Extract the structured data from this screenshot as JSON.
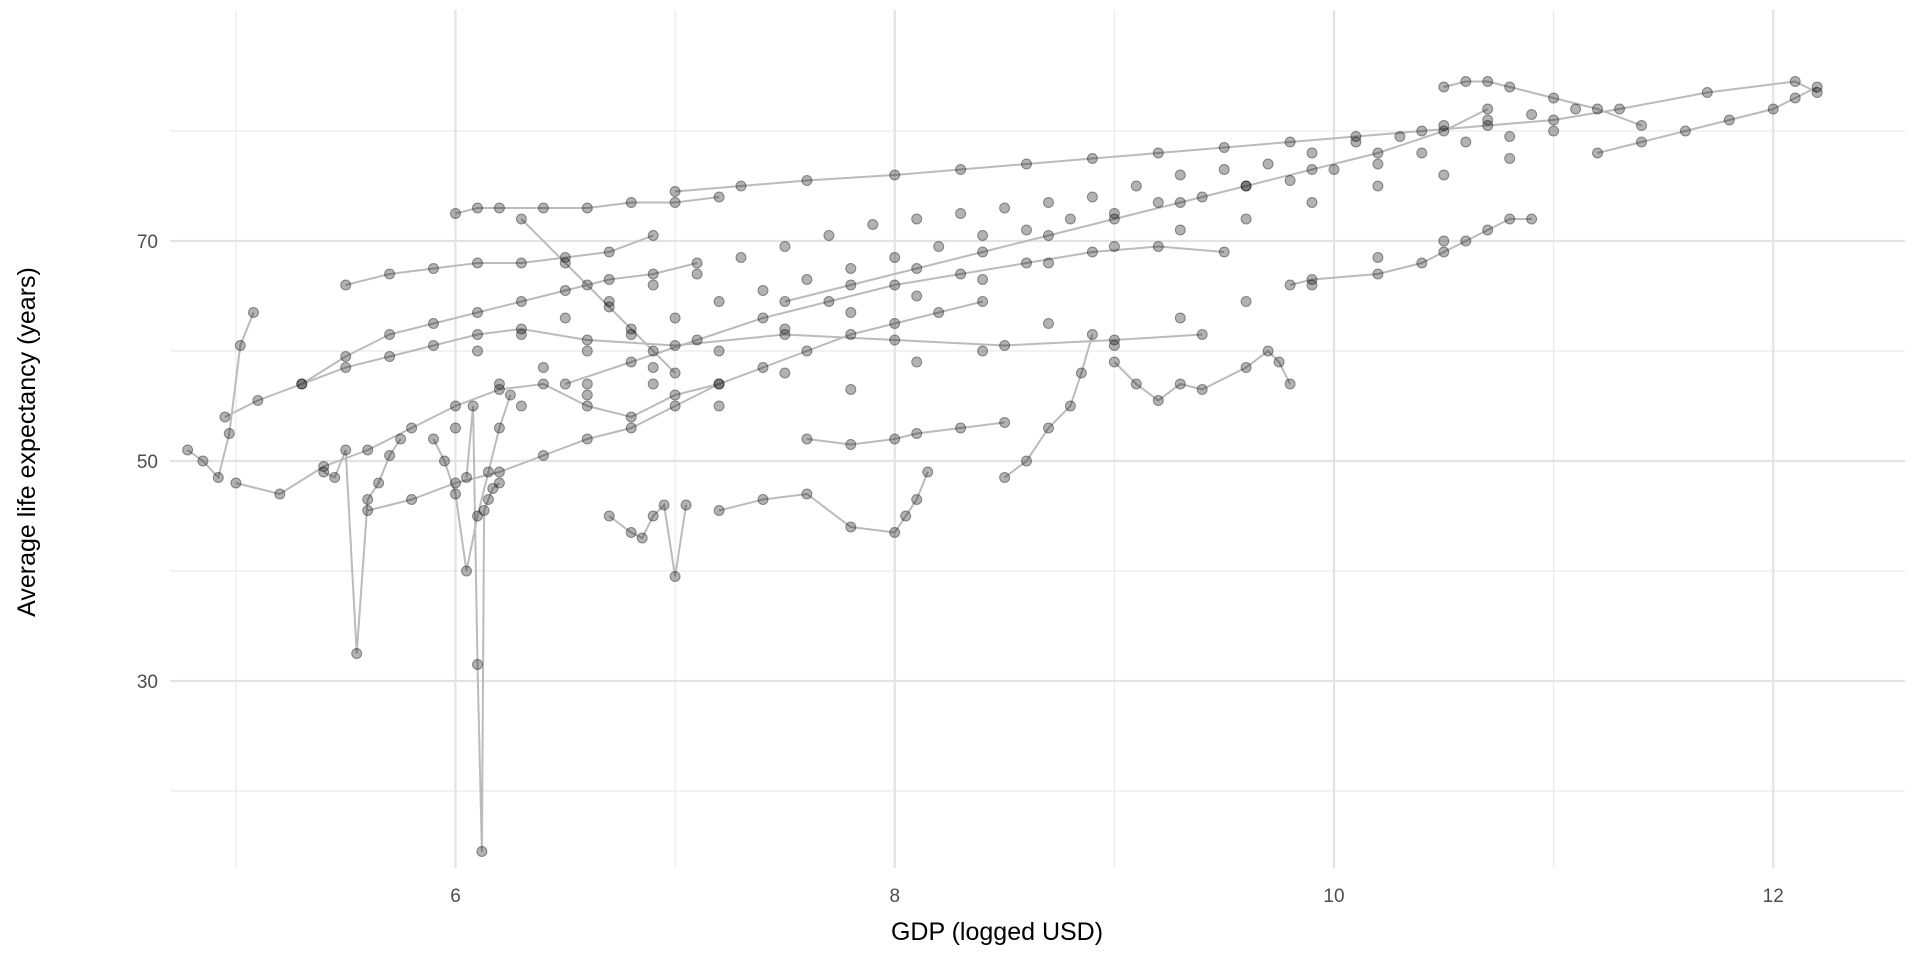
{
  "chart_data": {
    "type": "line",
    "markers": true,
    "title": "",
    "xlabel": "GDP (logged USD)",
    "ylabel": "Average life expectancy (years)",
    "xlim": [
      4.7,
      12.6
    ],
    "ylim": [
      13,
      91
    ],
    "x_ticks": [
      6,
      8,
      10,
      12
    ],
    "y_ticks": [
      30,
      50,
      70
    ],
    "x_minor_gridlines": [
      5,
      7,
      9,
      11
    ],
    "y_minor_gridlines": [
      20,
      40,
      60,
      80
    ],
    "grid": true,
    "legend": "none",
    "mark_color": "#000000",
    "point_opacity": 0.3,
    "line_color": "#bbbbbb",
    "series": [
      {
        "x": [
          4.78,
          4.85,
          4.92,
          4.97,
          5.02,
          5.08
        ],
        "y": [
          51.0,
          50.0,
          48.5,
          52.5,
          60.5,
          63.5
        ]
      },
      {
        "x": [
          4.95,
          5.1,
          5.3,
          5.5,
          5.7,
          5.9,
          6.1,
          6.3,
          6.6,
          7.0,
          7.5,
          8.0,
          8.5,
          9.0,
          9.4
        ],
        "y": [
          54.0,
          55.5,
          57.0,
          58.5,
          59.5,
          60.5,
          61.5,
          62.0,
          61.0,
          60.5,
          61.5,
          61.0,
          60.5,
          61.0,
          61.5
        ]
      },
      {
        "x": [
          5.0,
          5.2,
          5.4,
          5.6,
          5.8,
          6.0,
          6.2,
          6.4,
          6.6,
          6.8,
          7.0,
          7.2
        ],
        "y": [
          48.0,
          47.0,
          49.5,
          51.0,
          53.0,
          55.0,
          56.5,
          57.0,
          55.0,
          54.0,
          56.0,
          57.0
        ]
      },
      {
        "x": [
          5.4,
          5.45,
          5.5,
          5.55,
          5.6,
          5.65,
          5.7,
          5.75
        ],
        "y": [
          49.0,
          48.5,
          51.0,
          32.5,
          46.5,
          48.0,
          50.5,
          52.0
        ]
      },
      {
        "x": [
          5.3,
          5.5,
          5.7,
          5.9,
          6.1,
          6.3,
          6.5,
          6.7,
          6.9,
          7.1
        ],
        "y": [
          57.0,
          59.5,
          61.5,
          62.5,
          63.5,
          64.5,
          65.5,
          66.5,
          67.0,
          68.0
        ]
      },
      {
        "x": [
          5.5,
          5.7,
          5.9,
          6.1,
          6.3,
          6.5,
          6.7,
          6.9
        ],
        "y": [
          66.0,
          67.0,
          67.5,
          68.0,
          68.0,
          68.5,
          69.0,
          70.5
        ]
      },
      {
        "x": [
          5.6,
          5.8,
          6.0,
          6.2,
          6.4,
          6.6,
          6.8,
          7.0,
          7.2,
          7.4,
          7.6,
          7.8,
          8.0,
          8.2,
          8.4
        ],
        "y": [
          45.5,
          46.5,
          48.0,
          49.0,
          50.5,
          52.0,
          53.0,
          55.0,
          57.0,
          58.5,
          60.0,
          61.5,
          62.5,
          63.5,
          64.5
        ]
      },
      {
        "x": [
          5.9,
          5.95,
          6.0,
          6.05,
          6.1,
          6.15,
          6.2,
          6.25
        ],
        "y": [
          52.0,
          50.0,
          47.0,
          40.0,
          45.0,
          49.0,
          53.0,
          56.0
        ]
      },
      {
        "x": [
          6.05,
          6.08,
          6.1,
          6.12,
          6.13,
          6.15,
          6.17,
          6.2
        ],
        "y": [
          48.5,
          55.0,
          31.5,
          14.5,
          45.5,
          46.5,
          47.5,
          48.0
        ]
      },
      {
        "x": [
          6.0,
          6.1,
          6.2,
          6.4,
          6.6,
          6.8,
          7.0,
          7.2
        ],
        "y": [
          72.5,
          73.0,
          73.0,
          73.0,
          73.0,
          73.5,
          73.5,
          74.0
        ]
      },
      {
        "x": [
          6.7,
          6.8,
          6.85,
          6.9,
          6.95,
          7.0,
          7.05
        ],
        "y": [
          45.0,
          43.5,
          43.0,
          45.0,
          46.0,
          39.5,
          46.0
        ]
      },
      {
        "x": [
          7.2,
          7.4,
          7.6,
          7.8,
          8.0,
          8.05,
          8.1,
          8.15
        ],
        "y": [
          45.5,
          46.5,
          47.0,
          44.0,
          43.5,
          45.0,
          46.5,
          49.0
        ]
      },
      {
        "x": [
          8.5,
          8.6,
          8.7,
          8.8,
          8.85,
          8.9
        ],
        "y": [
          48.5,
          50.0,
          53.0,
          55.0,
          58.0,
          61.5
        ]
      },
      {
        "x": [
          9.0,
          9.1,
          9.2,
          9.3,
          9.4,
          9.6,
          9.7,
          9.75,
          9.8
        ],
        "y": [
          59.0,
          57.0,
          55.5,
          57.0,
          56.5,
          58.5,
          60.0,
          59.0,
          57.0
        ]
      },
      {
        "x": [
          9.8,
          9.9,
          10.2,
          10.4,
          10.5,
          10.6,
          10.7,
          10.8,
          10.9
        ],
        "y": [
          66.0,
          66.5,
          67.0,
          68.0,
          69.0,
          70.0,
          71.0,
          72.0,
          72.0
        ]
      },
      {
        "x": [
          7.0,
          7.3,
          7.6,
          8.0,
          8.3,
          8.6,
          8.9,
          9.2,
          9.5,
          9.8,
          10.1,
          10.4,
          10.7,
          11.0,
          11.3,
          11.7,
          12.1,
          12.2
        ],
        "y": [
          74.5,
          75.0,
          75.5,
          76.0,
          76.5,
          77.0,
          77.5,
          78.0,
          78.5,
          79.0,
          79.5,
          80.0,
          80.5,
          81.0,
          82.0,
          83.5,
          84.5,
          83.5
        ]
      },
      {
        "x": [
          7.5,
          7.8,
          8.1,
          8.4,
          8.7,
          9.0,
          9.3,
          9.6,
          9.9,
          10.2,
          10.5,
          10.7
        ],
        "y": [
          64.5,
          66.0,
          67.5,
          69.0,
          70.5,
          72.0,
          73.5,
          75.0,
          76.5,
          78.0,
          80.0,
          82.0
        ]
      },
      {
        "x": [
          11.2,
          11.4,
          11.6,
          11.8,
          12.0,
          12.1,
          12.2
        ],
        "y": [
          78.0,
          79.0,
          80.0,
          81.0,
          82.0,
          83.0,
          84.0
        ]
      },
      {
        "x": [
          6.5,
          6.8,
          7.1,
          7.4,
          7.7,
          8.0,
          8.3,
          8.6,
          8.9,
          9.2,
          9.5
        ],
        "y": [
          57.0,
          59.0,
          61.0,
          63.0,
          64.5,
          66.0,
          67.0,
          68.0,
          69.0,
          69.5,
          69.0
        ]
      },
      {
        "x": [
          6.3,
          6.5,
          6.6,
          6.7,
          6.8,
          6.9,
          7.0
        ],
        "y": [
          72.0,
          68.0,
          66.0,
          64.0,
          62.0,
          60.0,
          58.0
        ]
      },
      {
        "x": [
          7.6,
          7.8,
          8.0,
          8.1,
          8.3,
          8.5
        ],
        "y": [
          52.0,
          51.5,
          52.0,
          52.5,
          53.0,
          53.5
        ]
      },
      {
        "x": [
          10.5,
          10.6,
          10.7,
          10.8,
          11.0,
          11.2,
          11.4
        ],
        "y": [
          84.0,
          84.5,
          84.5,
          84.0,
          83.0,
          82.0,
          80.5
        ]
      }
    ],
    "cloud_scatter": [
      {
        "x": [
          6.1,
          6.3,
          6.5,
          6.7,
          6.9,
          7.1,
          7.3,
          7.5,
          7.7,
          7.9,
          8.1,
          8.3,
          8.5,
          8.7,
          8.9,
          9.1,
          9.3,
          9.5,
          9.7,
          9.9,
          10.1,
          10.3,
          10.5,
          10.7,
          10.9,
          11.1
        ],
        "y": [
          60.0,
          61.5,
          63.0,
          64.5,
          66.0,
          67.0,
          68.5,
          69.5,
          70.5,
          71.5,
          72.0,
          72.5,
          73.0,
          73.5,
          74.0,
          75.0,
          76.0,
          76.5,
          77.0,
          78.0,
          79.0,
          79.5,
          80.5,
          81.0,
          81.5,
          82.0
        ]
      },
      {
        "x": [
          6.2,
          6.4,
          6.6,
          6.8,
          7.0,
          7.2,
          7.4,
          7.6,
          7.8,
          8.0,
          8.2,
          8.4,
          8.6,
          8.8,
          9.0,
          9.2,
          9.4,
          9.6,
          9.8,
          10.0,
          10.2,
          10.4,
          10.6,
          10.8,
          11.0
        ],
        "y": [
          57.0,
          58.5,
          60.0,
          61.5,
          63.0,
          64.5,
          65.5,
          66.5,
          67.5,
          68.5,
          69.5,
          70.5,
          71.0,
          72.0,
          72.5,
          73.5,
          74.0,
          75.0,
          75.5,
          76.5,
          77.0,
          78.0,
          79.0,
          79.5,
          80.0
        ]
      },
      {
        "x": [
          6.0,
          6.3,
          6.6,
          6.9,
          7.2,
          7.5,
          7.8,
          8.1,
          8.4,
          8.7,
          9.0,
          9.3,
          9.6,
          9.9,
          10.2,
          10.5,
          10.8
        ],
        "y": [
          53.0,
          55.0,
          57.0,
          58.5,
          60.0,
          62.0,
          63.5,
          65.0,
          66.5,
          68.0,
          69.5,
          71.0,
          72.0,
          73.5,
          75.0,
          76.0,
          77.5
        ]
      },
      {
        "x": [
          6.6,
          6.9,
          7.2,
          7.5,
          7.8,
          8.1,
          8.4,
          8.7,
          9.0,
          9.3,
          9.6,
          9.9,
          10.2,
          10.5
        ],
        "y": [
          56.0,
          57.0,
          55.0,
          58.0,
          56.5,
          59.0,
          60.0,
          62.5,
          60.5,
          63.0,
          64.5,
          66.0,
          68.5,
          70.0
        ]
      }
    ]
  }
}
